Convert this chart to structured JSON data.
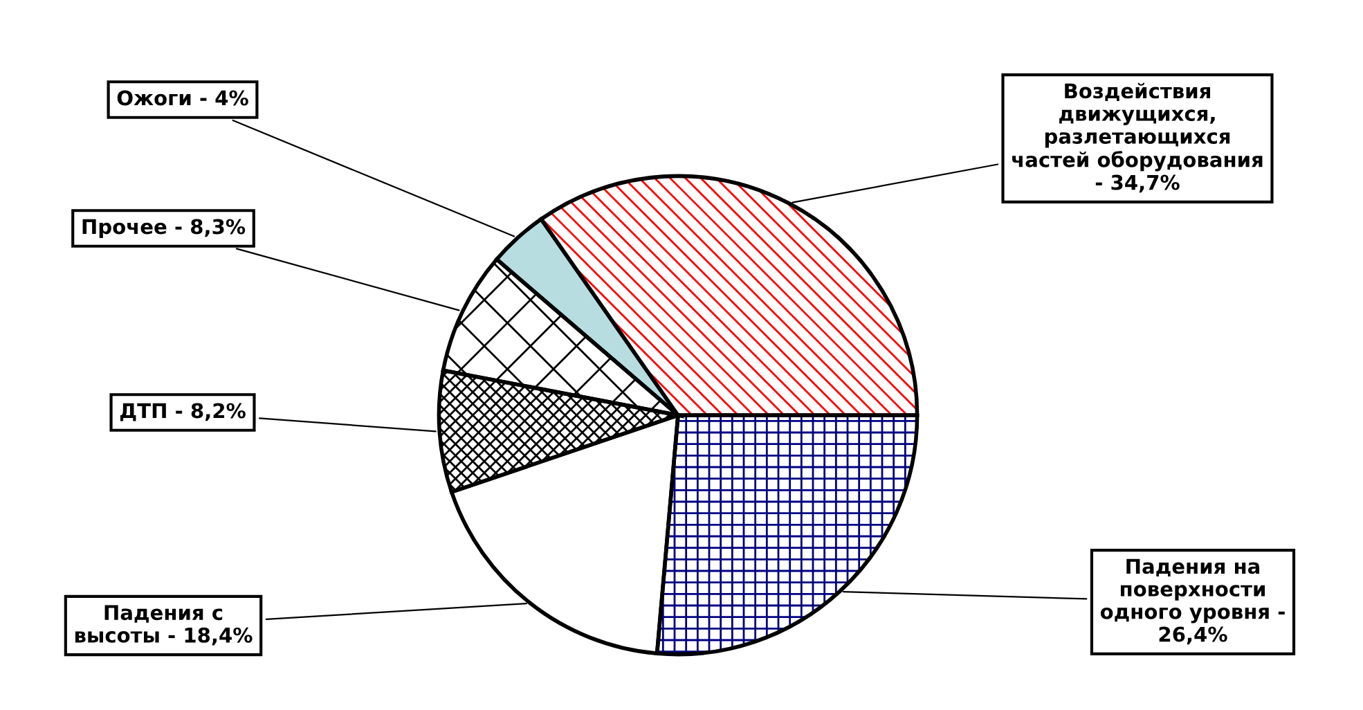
{
  "chart_data": {
    "type": "pie",
    "categories": [
      "Падения на\nповерхности\nодного уровня -\n26,4%",
      "Падения с\nвысоты - 18,4%",
      "ДТП - 8,2%",
      "Прочее - 8,3%",
      "Ожоги - 4%",
      "Воздействия\nдвижущихся,\nразлетающихся\nчастей оборудования\n- 34,7%"
    ],
    "values": [
      26.4,
      18.4,
      8.2,
      8.3,
      4,
      34.7
    ],
    "colors": [
      "#000080",
      "#ffffff",
      "#000000",
      "#000000",
      "#b7dde1",
      "#ff0000"
    ],
    "legend": false
  }
}
